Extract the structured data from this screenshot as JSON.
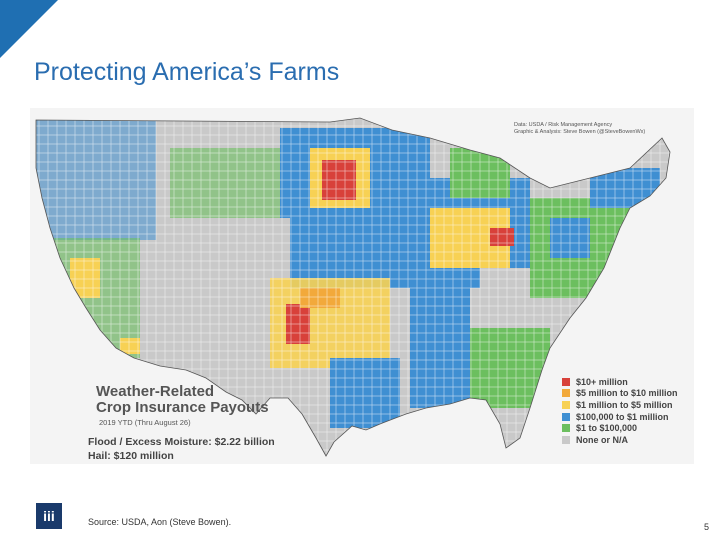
{
  "slide": {
    "title": "Protecting America’s Farms",
    "source": "Source: USDA, Aon (Steve Bowen).",
    "page_number": "5",
    "logo_text": "iii",
    "accent_color": "#1f6fb2"
  },
  "map": {
    "credit_line1": "Data: USDA / Risk Management Agency",
    "credit_line2": "Graphic & Analysis: Steve Bowen (@SteveBowenWx)",
    "heading_line1": "Weather-Related",
    "heading_line2": "Crop Insurance Payouts",
    "subheading": "2019 YTD (Thru August 26)",
    "flood_stat": "Flood / Excess Moisture: $2.22 billion",
    "hail_stat": "Hail: $120 million",
    "legend": [
      {
        "label": "$10+ million",
        "color": "#d8413a"
      },
      {
        "label": "$5 million to $10 million",
        "color": "#f2a93b"
      },
      {
        "label": "$1 million to $5 million",
        "color": "#f7d154"
      },
      {
        "label": "$100,000 to $1 million",
        "color": "#3f8fd2"
      },
      {
        "label": "$1 to $100,000",
        "color": "#6cbf5f"
      },
      {
        "label": "None or N/A",
        "color": "#c9c9c9"
      }
    ]
  }
}
